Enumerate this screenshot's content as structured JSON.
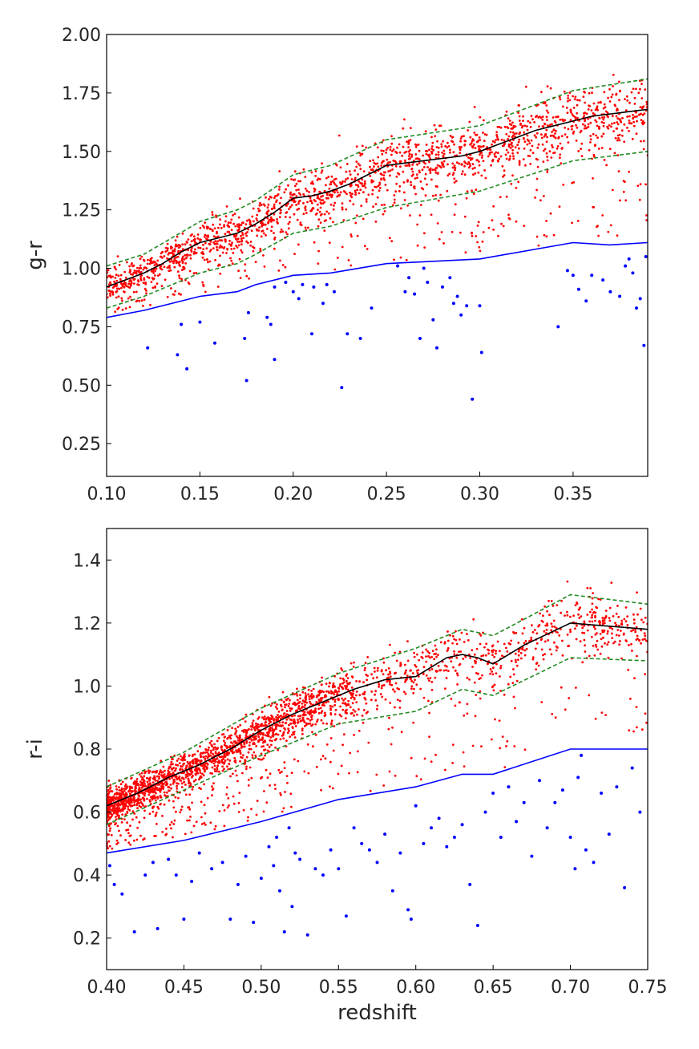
{
  "chart_data": [
    {
      "type": "scatter",
      "title": "",
      "xlabel": "",
      "ylabel": "g-r",
      "xlim": [
        0.1,
        0.39
      ],
      "ylim": [
        0.11,
        2.0
      ],
      "xticks": [
        0.1,
        0.15,
        0.2,
        0.25,
        0.3,
        0.35
      ],
      "xtick_labels": [
        "0.10",
        "0.15",
        "0.20",
        "0.25",
        "0.30",
        "0.35"
      ],
      "yticks": [
        0.25,
        0.5,
        0.75,
        1.0,
        1.25,
        1.5,
        1.75,
        2.0
      ],
      "ytick_labels": [
        "0.25",
        "0.50",
        "0.75",
        "1.00",
        "1.25",
        "1.50",
        "1.75",
        "2.00"
      ],
      "grid": false,
      "colors": {
        "red_points": "#ff0000",
        "blue_points": "#0000ff",
        "median_line": "#000000",
        "envelope_lines": "#228B22",
        "cut_line": "#0000ff"
      },
      "series": [
        {
          "role": "median-line",
          "x": [
            0.1,
            0.11,
            0.12,
            0.13,
            0.14,
            0.15,
            0.16,
            0.17,
            0.18,
            0.19,
            0.2,
            0.21,
            0.22,
            0.23,
            0.24,
            0.25,
            0.26,
            0.27,
            0.28,
            0.29,
            0.3,
            0.31,
            0.32,
            0.33,
            0.34,
            0.35,
            0.36,
            0.37,
            0.38,
            0.39
          ],
          "y": [
            0.92,
            0.95,
            0.98,
            1.02,
            1.07,
            1.11,
            1.13,
            1.15,
            1.19,
            1.24,
            1.3,
            1.31,
            1.33,
            1.36,
            1.4,
            1.44,
            1.45,
            1.46,
            1.47,
            1.48,
            1.5,
            1.53,
            1.56,
            1.59,
            1.61,
            1.63,
            1.65,
            1.66,
            1.67,
            1.68
          ]
        },
        {
          "role": "upper-envelope",
          "x": [
            0.1,
            0.12,
            0.15,
            0.17,
            0.18,
            0.2,
            0.22,
            0.25,
            0.3,
            0.35,
            0.39
          ],
          "y": [
            1.01,
            1.06,
            1.2,
            1.25,
            1.29,
            1.4,
            1.44,
            1.55,
            1.61,
            1.76,
            1.81
          ]
        },
        {
          "role": "lower-envelope",
          "x": [
            0.1,
            0.12,
            0.15,
            0.17,
            0.18,
            0.2,
            0.22,
            0.25,
            0.3,
            0.35,
            0.39
          ],
          "y": [
            0.83,
            0.88,
            0.98,
            1.02,
            1.06,
            1.15,
            1.18,
            1.26,
            1.33,
            1.46,
            1.5
          ]
        },
        {
          "role": "cut-line",
          "x": [
            0.1,
            0.12,
            0.15,
            0.17,
            0.18,
            0.2,
            0.22,
            0.25,
            0.3,
            0.35,
            0.37,
            0.39
          ],
          "y": [
            0.79,
            0.82,
            0.88,
            0.9,
            0.93,
            0.97,
            0.98,
            1.02,
            1.04,
            1.11,
            1.1,
            1.11
          ]
        },
        {
          "role": "blue-points",
          "x": [
            0.122,
            0.138,
            0.14,
            0.143,
            0.15,
            0.158,
            0.174,
            0.175,
            0.176,
            0.186,
            0.188,
            0.19,
            0.196,
            0.19,
            0.2,
            0.203,
            0.205,
            0.21,
            0.211,
            0.216,
            0.218,
            0.222,
            0.226,
            0.229,
            0.236,
            0.242,
            0.256,
            0.26,
            0.262,
            0.265,
            0.268,
            0.27,
            0.272,
            0.275,
            0.277,
            0.28,
            0.284,
            0.286,
            0.288,
            0.29,
            0.293,
            0.296,
            0.3,
            0.301,
            0.342,
            0.347,
            0.35,
            0.353,
            0.357,
            0.36,
            0.366,
            0.37,
            0.375,
            0.378,
            0.38,
            0.382,
            0.384,
            0.386,
            0.388,
            0.389
          ],
          "y": [
            0.66,
            0.63,
            0.76,
            0.57,
            0.77,
            0.68,
            0.7,
            0.52,
            0.81,
            0.79,
            0.76,
            0.61,
            0.94,
            0.92,
            0.9,
            0.87,
            0.93,
            0.72,
            0.92,
            0.85,
            0.93,
            0.9,
            0.49,
            0.72,
            0.7,
            0.83,
            1.01,
            0.9,
            0.96,
            0.89,
            0.7,
            1.0,
            0.94,
            0.78,
            0.66,
            0.92,
            0.96,
            0.85,
            0.88,
            0.8,
            0.84,
            0.44,
            0.84,
            0.64,
            0.75,
            0.99,
            0.97,
            0.91,
            0.86,
            0.97,
            0.95,
            0.9,
            0.88,
            1.01,
            1.04,
            0.98,
            0.83,
            0.87,
            0.67,
            1.05
          ]
        }
      ]
    },
    {
      "type": "scatter",
      "title": "",
      "xlabel": "redshift",
      "ylabel": "r-i",
      "xlim": [
        0.4,
        0.75
      ],
      "ylim": [
        0.1,
        1.5
      ],
      "xticks": [
        0.4,
        0.45,
        0.5,
        0.55,
        0.6,
        0.65,
        0.7,
        0.75
      ],
      "xtick_labels": [
        "0.40",
        "0.45",
        "0.50",
        "0.55",
        "0.60",
        "0.65",
        "0.70",
        "0.75"
      ],
      "yticks": [
        0.2,
        0.4,
        0.6,
        0.8,
        1.0,
        1.2,
        1.4
      ],
      "ytick_labels": [
        "0.2",
        "0.4",
        "0.6",
        "0.8",
        "1.0",
        "1.2",
        "1.4"
      ],
      "grid": false,
      "colors": {
        "red_points": "#ff0000",
        "blue_points": "#0000ff",
        "median_line": "#000000",
        "envelope_lines": "#228B22",
        "cut_line": "#0000ff"
      },
      "series": [
        {
          "role": "median-line",
          "x": [
            0.4,
            0.42,
            0.44,
            0.46,
            0.48,
            0.5,
            0.52,
            0.54,
            0.56,
            0.58,
            0.6,
            0.62,
            0.63,
            0.64,
            0.65,
            0.67,
            0.7,
            0.75
          ],
          "y": [
            0.62,
            0.66,
            0.71,
            0.75,
            0.8,
            0.86,
            0.91,
            0.95,
            0.99,
            1.02,
            1.03,
            1.09,
            1.1,
            1.09,
            1.07,
            1.13,
            1.2,
            1.18
          ]
        },
        {
          "role": "upper-envelope",
          "x": [
            0.4,
            0.45,
            0.5,
            0.55,
            0.6,
            0.63,
            0.65,
            0.7,
            0.75
          ],
          "y": [
            0.68,
            0.79,
            0.93,
            1.04,
            1.12,
            1.18,
            1.16,
            1.29,
            1.26
          ]
        },
        {
          "role": "lower-envelope",
          "x": [
            0.4,
            0.45,
            0.5,
            0.55,
            0.6,
            0.63,
            0.65,
            0.7,
            0.75
          ],
          "y": [
            0.56,
            0.67,
            0.78,
            0.88,
            0.92,
            0.99,
            0.97,
            1.09,
            1.08
          ]
        },
        {
          "role": "cut-line",
          "x": [
            0.4,
            0.45,
            0.5,
            0.55,
            0.6,
            0.63,
            0.65,
            0.7,
            0.75
          ],
          "y": [
            0.47,
            0.51,
            0.57,
            0.64,
            0.68,
            0.72,
            0.72,
            0.8,
            0.8
          ]
        },
        {
          "role": "blue-points",
          "x": [
            0.402,
            0.405,
            0.41,
            0.418,
            0.425,
            0.43,
            0.433,
            0.44,
            0.445,
            0.45,
            0.455,
            0.46,
            0.468,
            0.475,
            0.48,
            0.485,
            0.49,
            0.495,
            0.5,
            0.505,
            0.508,
            0.51,
            0.512,
            0.515,
            0.518,
            0.52,
            0.522,
            0.525,
            0.53,
            0.535,
            0.54,
            0.545,
            0.55,
            0.555,
            0.56,
            0.565,
            0.57,
            0.575,
            0.58,
            0.585,
            0.59,
            0.595,
            0.597,
            0.6,
            0.605,
            0.61,
            0.615,
            0.62,
            0.625,
            0.63,
            0.635,
            0.64,
            0.645,
            0.65,
            0.655,
            0.66,
            0.665,
            0.67,
            0.675,
            0.68,
            0.685,
            0.69,
            0.695,
            0.7,
            0.703,
            0.705,
            0.707,
            0.71,
            0.715,
            0.72,
            0.725,
            0.73,
            0.735,
            0.74,
            0.745
          ],
          "y": [
            0.43,
            0.37,
            0.34,
            0.22,
            0.4,
            0.44,
            0.23,
            0.45,
            0.4,
            0.26,
            0.38,
            0.47,
            0.42,
            0.44,
            0.26,
            0.37,
            0.46,
            0.25,
            0.39,
            0.49,
            0.43,
            0.52,
            0.35,
            0.22,
            0.55,
            0.3,
            0.47,
            0.45,
            0.21,
            0.42,
            0.4,
            0.48,
            0.42,
            0.27,
            0.55,
            0.5,
            0.48,
            0.44,
            0.53,
            0.35,
            0.47,
            0.29,
            0.26,
            0.62,
            0.5,
            0.55,
            0.58,
            0.49,
            0.52,
            0.56,
            0.37,
            0.24,
            0.6,
            0.66,
            0.52,
            0.68,
            0.57,
            0.63,
            0.46,
            0.7,
            0.55,
            0.63,
            0.67,
            0.52,
            0.42,
            0.71,
            0.78,
            0.48,
            0.44,
            0.66,
            0.53,
            0.68,
            0.36,
            0.74,
            0.6
          ]
        }
      ]
    }
  ]
}
